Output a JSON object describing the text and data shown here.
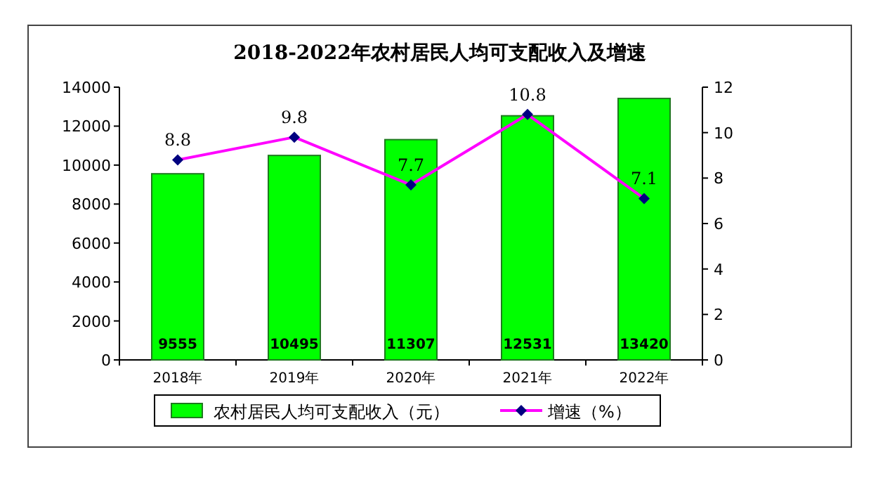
{
  "chart_data": {
    "type": "bar",
    "title": "2018-2022年农村居民人均可支配收入及增速",
    "categories": [
      "2018年",
      "2019年",
      "2020年",
      "2021年",
      "2022年"
    ],
    "series": [
      {
        "name": "农村居民人均可支配收入（元）",
        "color": "#00ff00",
        "values": [
          9555,
          10495,
          11307,
          12531,
          13420
        ]
      },
      {
        "name": "增速（%）",
        "type": "line",
        "axis": "y2",
        "color": "#ff00ff",
        "marker": "diamond",
        "values": [
          8.8,
          9.8,
          7.7,
          10.8,
          7.1
        ]
      }
    ],
    "ylim": [
      0,
      14000
    ],
    "yticks": [
      0,
      2000,
      4000,
      6000,
      8000,
      10000,
      12000,
      14000
    ],
    "y2lim": [
      0,
      12
    ],
    "y2ticks": [
      0,
      2,
      4,
      6,
      8,
      10,
      12
    ],
    "data_labels": true,
    "legend": "bottom"
  }
}
